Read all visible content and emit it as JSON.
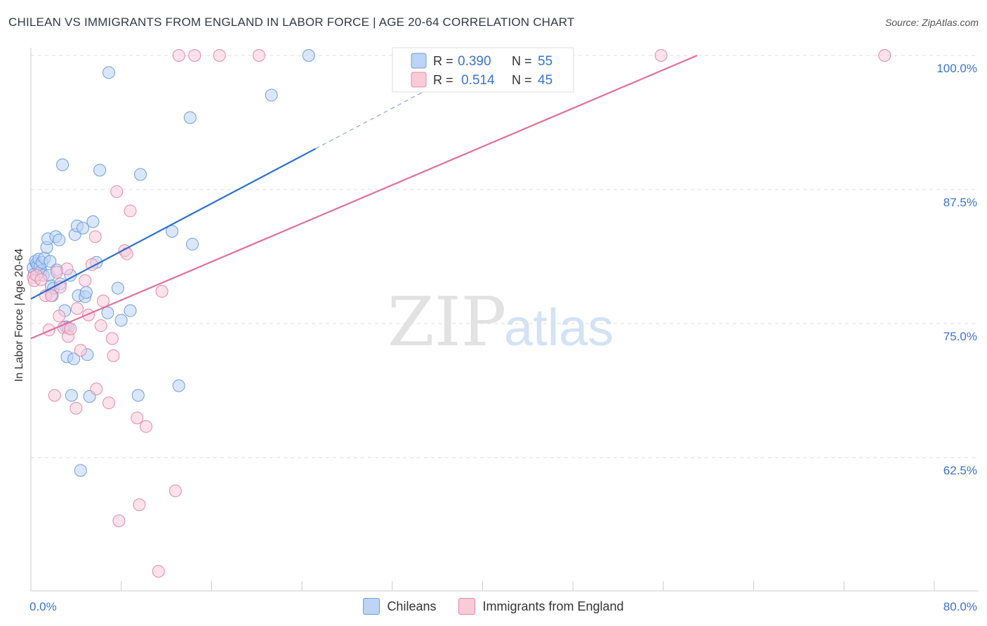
{
  "header": {
    "title": "CHILEAN VS IMMIGRANTS FROM ENGLAND IN LABOR FORCE | AGE 20-64 CORRELATION CHART",
    "source": "Source: ZipAtlas.com"
  },
  "watermark": {
    "zip": "ZIP",
    "atlas": "atlas"
  },
  "colors": {
    "chileans_fill": "#bcd4f6",
    "chileans_stroke": "#6f9edc",
    "chileans_line": "#2b6fd0",
    "england_fill": "#f9cad8",
    "england_stroke": "#e48aa8",
    "england_line": "#e07098",
    "accent_text": "#3b72d0",
    "grid": "#dddddd"
  },
  "legend": {
    "chileans": {
      "r_label": "R =",
      "r_value": "0.390",
      "n_label": "N =",
      "n_value": "55"
    },
    "england": {
      "r_label": "R =",
      "r_value": "0.514",
      "n_label": "N =",
      "n_value": "45"
    }
  },
  "bottom_legend": {
    "chileans": "Chileans",
    "england": "Immigrants from England"
  },
  "chart_data": {
    "type": "scatter",
    "title": "CHILEAN VS IMMIGRANTS FROM ENGLAND IN LABOR FORCE | AGE 20-64 CORRELATION CHART",
    "xlabel": "",
    "ylabel": "In Labor Force | Age 20-64",
    "xlim": [
      0,
      80
    ],
    "ylim": [
      52,
      101.5
    ],
    "x_tick_labels": [
      {
        "value": 0,
        "label": "0.0%"
      },
      {
        "value": 80,
        "label": "80.0%"
      }
    ],
    "y_tick_labels": [
      {
        "value": 100,
        "label": "100.0%"
      },
      {
        "value": 87.5,
        "label": "87.5%"
      },
      {
        "value": 75,
        "label": "75.0%"
      },
      {
        "value": 62.5,
        "label": "62.5%"
      }
    ],
    "series": [
      {
        "name": "Chileans",
        "r": 0.39,
        "n": 55,
        "trend": {
          "x0": 0,
          "y0": 77.3,
          "x1": 25.2,
          "y1": 91.3,
          "dash_x1": 36,
          "dash_y1": 97.3
        },
        "points": [
          [
            0.2,
            80.2
          ],
          [
            0.3,
            79.6
          ],
          [
            0.4,
            80.8
          ],
          [
            0.5,
            80.6
          ],
          [
            0.6,
            80.4
          ],
          [
            0.7,
            81.0
          ],
          [
            0.8,
            80.3
          ],
          [
            0.9,
            79.9
          ],
          [
            1.0,
            80.7
          ],
          [
            1.1,
            79.5
          ],
          [
            1.2,
            81.1
          ],
          [
            1.4,
            82.1
          ],
          [
            1.5,
            82.9
          ],
          [
            1.6,
            79.5
          ],
          [
            1.7,
            80.8
          ],
          [
            1.8,
            78.5
          ],
          [
            1.9,
            77.6
          ],
          [
            2.0,
            78.3
          ],
          [
            2.2,
            83.1
          ],
          [
            2.3,
            80.0
          ],
          [
            2.5,
            82.8
          ],
          [
            2.6,
            78.7
          ],
          [
            2.8,
            89.8
          ],
          [
            3.0,
            76.2
          ],
          [
            3.1,
            74.7
          ],
          [
            3.2,
            71.9
          ],
          [
            3.3,
            74.6
          ],
          [
            3.5,
            79.5
          ],
          [
            3.6,
            68.3
          ],
          [
            3.8,
            71.7
          ],
          [
            3.9,
            83.3
          ],
          [
            4.1,
            84.1
          ],
          [
            4.2,
            77.6
          ],
          [
            4.4,
            61.3
          ],
          [
            4.6,
            83.9
          ],
          [
            4.8,
            77.5
          ],
          [
            4.9,
            77.9
          ],
          [
            5.0,
            72.1
          ],
          [
            5.2,
            68.2
          ],
          [
            5.5,
            84.5
          ],
          [
            5.8,
            80.7
          ],
          [
            6.1,
            89.3
          ],
          [
            6.8,
            76.0
          ],
          [
            6.9,
            98.4
          ],
          [
            7.7,
            78.3
          ],
          [
            8.0,
            75.3
          ],
          [
            8.8,
            76.2
          ],
          [
            9.5,
            68.3
          ],
          [
            9.7,
            88.9
          ],
          [
            12.5,
            83.6
          ],
          [
            13.1,
            69.2
          ],
          [
            14.1,
            94.2
          ],
          [
            14.3,
            82.4
          ],
          [
            21.3,
            96.3
          ],
          [
            24.6,
            100.0
          ]
        ]
      },
      {
        "name": "Immigrants from England",
        "r": 0.514,
        "n": 45,
        "trend": {
          "x0": 0,
          "y0": 73.6,
          "x1": 59,
          "y1": 100.0
        },
        "points": [
          [
            0.2,
            79.3
          ],
          [
            0.3,
            79.0
          ],
          [
            0.5,
            79.5
          ],
          [
            0.9,
            79.1
          ],
          [
            1.3,
            77.6
          ],
          [
            1.6,
            74.4
          ],
          [
            1.8,
            77.6
          ],
          [
            2.1,
            68.3
          ],
          [
            2.3,
            79.8
          ],
          [
            2.5,
            75.7
          ],
          [
            2.6,
            78.4
          ],
          [
            2.9,
            74.6
          ],
          [
            3.2,
            80.1
          ],
          [
            3.3,
            73.8
          ],
          [
            3.5,
            74.5
          ],
          [
            4.0,
            67.1
          ],
          [
            4.1,
            76.4
          ],
          [
            4.4,
            72.5
          ],
          [
            4.8,
            79.0
          ],
          [
            5.1,
            75.8
          ],
          [
            5.4,
            80.5
          ],
          [
            5.7,
            83.1
          ],
          [
            5.8,
            68.9
          ],
          [
            6.2,
            74.8
          ],
          [
            6.4,
            77.1
          ],
          [
            6.9,
            67.6
          ],
          [
            7.2,
            73.6
          ],
          [
            7.3,
            72.0
          ],
          [
            7.6,
            87.3
          ],
          [
            7.8,
            56.6
          ],
          [
            8.3,
            81.8
          ],
          [
            8.5,
            81.5
          ],
          [
            8.8,
            85.5
          ],
          [
            9.4,
            66.2
          ],
          [
            9.6,
            58.1
          ],
          [
            10.2,
            65.4
          ],
          [
            11.3,
            51.9
          ],
          [
            11.6,
            78.0
          ],
          [
            12.8,
            59.4
          ],
          [
            13.1,
            100.0
          ],
          [
            14.5,
            100.0
          ],
          [
            16.7,
            100.0
          ],
          [
            20.2,
            100.0
          ],
          [
            55.8,
            100.0
          ],
          [
            75.6,
            100.0
          ]
        ]
      }
    ]
  }
}
